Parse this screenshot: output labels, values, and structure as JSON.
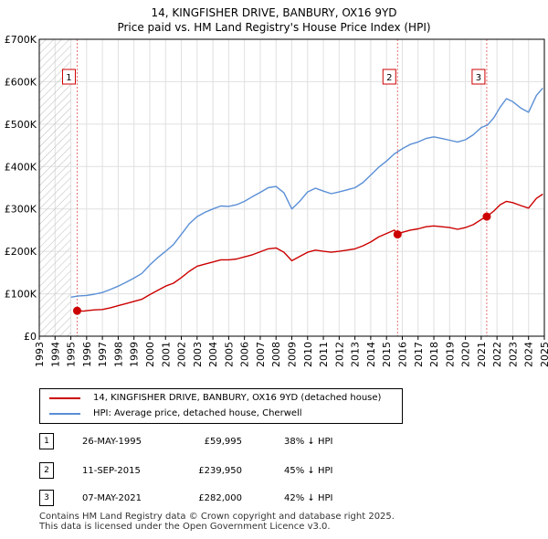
{
  "chart_data": {
    "type": "line",
    "title": "14, KINGFISHER DRIVE, BANBURY, OX16 9YD",
    "subtitle": "Price paid vs. HM Land Registry's House Price Index (HPI)",
    "xlim": [
      1993,
      2025
    ],
    "ylim": [
      0,
      700000
    ],
    "x_ticks": [
      1993,
      1994,
      1995,
      1996,
      1997,
      1998,
      1999,
      2000,
      2001,
      2002,
      2003,
      2004,
      2005,
      2006,
      2007,
      2008,
      2009,
      2010,
      2011,
      2012,
      2013,
      2014,
      2015,
      2016,
      2017,
      2018,
      2019,
      2020,
      2021,
      2022,
      2023,
      2024,
      2025
    ],
    "y_ticks": [
      {
        "value": 0,
        "label": "£0"
      },
      {
        "value": 100000,
        "label": "£100K"
      },
      {
        "value": 200000,
        "label": "£200K"
      },
      {
        "value": 300000,
        "label": "£300K"
      },
      {
        "value": 400000,
        "label": "£400K"
      },
      {
        "value": 500000,
        "label": "£500K"
      },
      {
        "value": 600000,
        "label": "£600K"
      },
      {
        "value": 700000,
        "label": "£700K"
      }
    ],
    "hatch_until": 1995.0,
    "series": [
      {
        "name": "14, KINGFISHER DRIVE, BANBURY, OX16 9YD (detached house)",
        "color": "#cc0000",
        "points": [
          [
            1995.4,
            59995
          ],
          [
            1995.8,
            59000
          ],
          [
            1996.0,
            60000
          ],
          [
            1996.5,
            62000
          ],
          [
            1997.0,
            63000
          ],
          [
            1997.5,
            67000
          ],
          [
            1998.0,
            72000
          ],
          [
            1998.5,
            77000
          ],
          [
            1999.0,
            82000
          ],
          [
            1999.5,
            87000
          ],
          [
            2000.0,
            98000
          ],
          [
            2000.5,
            108000
          ],
          [
            2001.0,
            118000
          ],
          [
            2001.5,
            125000
          ],
          [
            2002.0,
            138000
          ],
          [
            2002.5,
            153000
          ],
          [
            2003.0,
            165000
          ],
          [
            2003.5,
            170000
          ],
          [
            2004.0,
            175000
          ],
          [
            2004.5,
            180000
          ],
          [
            2005.0,
            180000
          ],
          [
            2005.5,
            182000
          ],
          [
            2006.0,
            187000
          ],
          [
            2006.5,
            192000
          ],
          [
            2007.0,
            199000
          ],
          [
            2007.5,
            206000
          ],
          [
            2008.0,
            208000
          ],
          [
            2008.5,
            198000
          ],
          [
            2009.0,
            178000
          ],
          [
            2009.5,
            188000
          ],
          [
            2010.0,
            198000
          ],
          [
            2010.5,
            203000
          ],
          [
            2011.0,
            200000
          ],
          [
            2011.5,
            198000
          ],
          [
            2012.0,
            200000
          ],
          [
            2012.5,
            203000
          ],
          [
            2013.0,
            206000
          ],
          [
            2013.5,
            213000
          ],
          [
            2014.0,
            222000
          ],
          [
            2014.5,
            234000
          ],
          [
            2015.0,
            242000
          ],
          [
            2015.5,
            250000
          ],
          [
            2015.7,
            239950
          ],
          [
            2016.0,
            245000
          ],
          [
            2016.5,
            250000
          ],
          [
            2017.0,
            253000
          ],
          [
            2017.5,
            258000
          ],
          [
            2018.0,
            260000
          ],
          [
            2018.5,
            258000
          ],
          [
            2019.0,
            256000
          ],
          [
            2019.5,
            252000
          ],
          [
            2020.0,
            256000
          ],
          [
            2020.5,
            263000
          ],
          [
            2021.0,
            275000
          ],
          [
            2021.35,
            282000
          ],
          [
            2021.8,
            295000
          ],
          [
            2022.2,
            310000
          ],
          [
            2022.6,
            318000
          ],
          [
            2023.0,
            315000
          ],
          [
            2023.5,
            308000
          ],
          [
            2024.0,
            302000
          ],
          [
            2024.5,
            325000
          ],
          [
            2024.9,
            335000
          ]
        ]
      },
      {
        "name": "HPI: Average price, detached house, Cherwell",
        "color": "#5a8fd6",
        "points": [
          [
            1995.0,
            92000
          ],
          [
            1995.5,
            95000
          ],
          [
            1996.0,
            96000
          ],
          [
            1996.5,
            99000
          ],
          [
            1997.0,
            103000
          ],
          [
            1997.5,
            110000
          ],
          [
            1998.0,
            118000
          ],
          [
            1998.5,
            127000
          ],
          [
            1999.0,
            137000
          ],
          [
            1999.5,
            148000
          ],
          [
            2000.0,
            168000
          ],
          [
            2000.5,
            185000
          ],
          [
            2001.0,
            200000
          ],
          [
            2001.5,
            216000
          ],
          [
            2002.0,
            240000
          ],
          [
            2002.5,
            265000
          ],
          [
            2003.0,
            282000
          ],
          [
            2003.5,
            292000
          ],
          [
            2004.0,
            300000
          ],
          [
            2004.5,
            307000
          ],
          [
            2005.0,
            306000
          ],
          [
            2005.5,
            310000
          ],
          [
            2006.0,
            318000
          ],
          [
            2006.5,
            329000
          ],
          [
            2007.0,
            339000
          ],
          [
            2007.5,
            350000
          ],
          [
            2008.0,
            353000
          ],
          [
            2008.5,
            338000
          ],
          [
            2009.0,
            300000
          ],
          [
            2009.5,
            318000
          ],
          [
            2010.0,
            340000
          ],
          [
            2010.5,
            349000
          ],
          [
            2011.0,
            342000
          ],
          [
            2011.5,
            336000
          ],
          [
            2012.0,
            340000
          ],
          [
            2012.5,
            345000
          ],
          [
            2013.0,
            350000
          ],
          [
            2013.5,
            362000
          ],
          [
            2014.0,
            380000
          ],
          [
            2014.5,
            398000
          ],
          [
            2015.0,
            413000
          ],
          [
            2015.5,
            430000
          ],
          [
            2016.0,
            442000
          ],
          [
            2016.5,
            452000
          ],
          [
            2017.0,
            458000
          ],
          [
            2017.5,
            466000
          ],
          [
            2018.0,
            470000
          ],
          [
            2018.5,
            466000
          ],
          [
            2019.0,
            462000
          ],
          [
            2019.5,
            458000
          ],
          [
            2020.0,
            463000
          ],
          [
            2020.5,
            475000
          ],
          [
            2021.0,
            492000
          ],
          [
            2021.4,
            498000
          ],
          [
            2021.8,
            515000
          ],
          [
            2022.2,
            540000
          ],
          [
            2022.6,
            560000
          ],
          [
            2023.0,
            553000
          ],
          [
            2023.5,
            538000
          ],
          [
            2024.0,
            528000
          ],
          [
            2024.5,
            568000
          ],
          [
            2024.9,
            585000
          ]
        ]
      }
    ],
    "sales": [
      {
        "label": "1",
        "year": 1995.4,
        "price": 59995
      },
      {
        "label": "2",
        "year": 2015.7,
        "price": 239950
      },
      {
        "label": "3",
        "year": 2021.35,
        "price": 282000
      }
    ]
  },
  "legend": {
    "items": [
      {
        "label": "14, KINGFISHER DRIVE, BANBURY, OX16 9YD (detached house)",
        "color": "#cc0000"
      },
      {
        "label": "HPI: Average price, detached house, Cherwell",
        "color": "#5a8fd6"
      }
    ]
  },
  "sales_table": [
    {
      "num": "1",
      "date": "26-MAY-1995",
      "price": "£59,995",
      "hpi": "38% ↓ HPI"
    },
    {
      "num": "2",
      "date": "11-SEP-2015",
      "price": "£239,950",
      "hpi": "45% ↓ HPI"
    },
    {
      "num": "3",
      "date": "07-MAY-2021",
      "price": "£282,000",
      "hpi": "42% ↓ HPI"
    }
  ],
  "footer": {
    "line1": "Contains HM Land Registry data © Crown copyright and database right 2025.",
    "line2": "This data is licensed under the Open Government Licence v3.0."
  }
}
